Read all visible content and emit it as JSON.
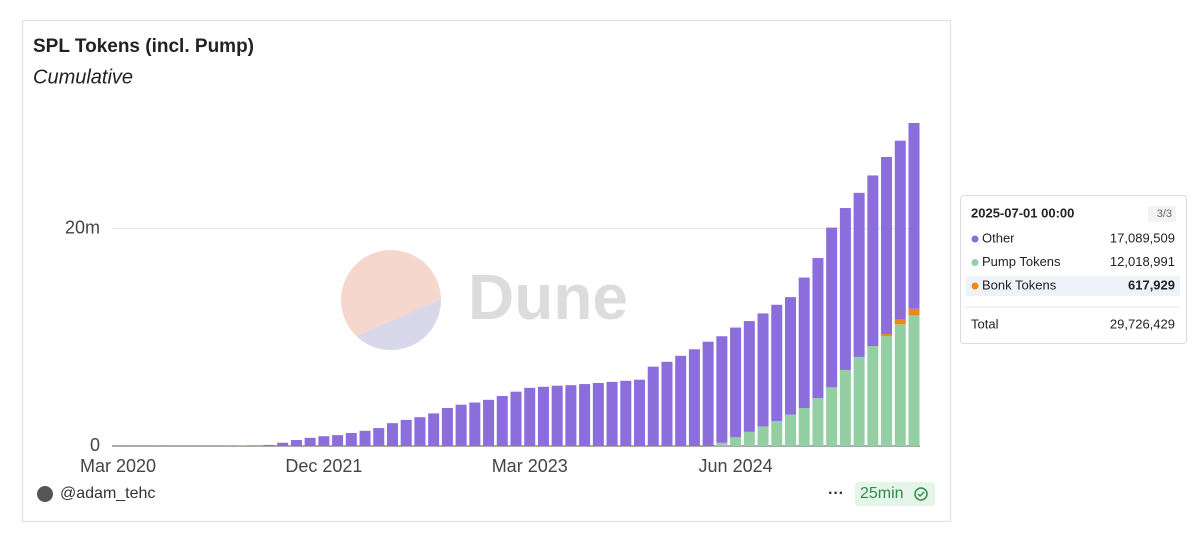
{
  "chart_data": {
    "type": "stacked_bar",
    "title": "SPL Tokens (incl. Pump)",
    "subtitle": "Cumulative",
    "watermark": "Dune",
    "categories": [
      "Mar 2020",
      null,
      null,
      null,
      null,
      null,
      null,
      null,
      null,
      null,
      null,
      null,
      null,
      null,
      null,
      "Dec 2021",
      null,
      null,
      null,
      null,
      null,
      null,
      null,
      null,
      null,
      null,
      null,
      null,
      null,
      null,
      "Mar 2023",
      null,
      null,
      null,
      null,
      null,
      null,
      null,
      null,
      null,
      null,
      null,
      null,
      null,
      null,
      "Jun 2024",
      null,
      null,
      null,
      null,
      null,
      null,
      null,
      null,
      null,
      null,
      null,
      null,
      null
    ],
    "series": [
      {
        "name": "Other",
        "color": "#8b6ddb",
        "values": [
          5000,
          8000,
          10000,
          12000,
          15000,
          18000,
          20000,
          25000,
          30000,
          40000,
          60000,
          100000,
          300000,
          550000,
          750000,
          900000,
          1000000,
          1200000,
          1400000,
          1650000,
          2100000,
          2400000,
          2650000,
          3000000,
          3500000,
          3800000,
          4000000,
          4250000,
          4600000,
          5000000,
          5350000,
          5450000,
          5550000,
          5600000,
          5700000,
          5800000,
          5900000,
          6000000,
          6100000,
          7300000,
          7750000,
          8300000,
          8900000,
          9600000,
          9800000,
          10100000,
          10200000,
          10400000,
          10700000,
          10800000,
          12000000,
          12900000,
          14700000,
          14900000,
          15100000,
          15700000,
          16300000,
          16450000,
          17089509
        ]
      },
      {
        "name": "Pump Tokens",
        "color": "#93cfa3",
        "values": [
          null,
          null,
          null,
          null,
          null,
          null,
          null,
          null,
          null,
          null,
          null,
          null,
          null,
          null,
          null,
          null,
          null,
          null,
          null,
          null,
          null,
          null,
          null,
          null,
          null,
          null,
          null,
          null,
          null,
          null,
          null,
          null,
          null,
          null,
          null,
          null,
          null,
          null,
          null,
          null,
          null,
          null,
          null,
          null,
          300000,
          800000,
          1300000,
          1800000,
          2300000,
          2900000,
          3500000,
          4400000,
          5400000,
          7000000,
          8200000,
          9200000,
          10100000,
          11200000,
          12018991
        ]
      },
      {
        "name": "Bonk Tokens",
        "color": "#e8891c",
        "values": [
          null,
          null,
          null,
          null,
          null,
          null,
          null,
          null,
          null,
          null,
          null,
          null,
          null,
          null,
          null,
          null,
          null,
          null,
          null,
          null,
          null,
          null,
          null,
          null,
          null,
          null,
          null,
          null,
          null,
          null,
          null,
          null,
          null,
          null,
          null,
          null,
          null,
          null,
          null,
          null,
          null,
          null,
          null,
          null,
          null,
          null,
          null,
          null,
          null,
          null,
          null,
          null,
          null,
          null,
          null,
          null,
          200000,
          450000,
          617929
        ]
      }
    ],
    "ylim": [
      0,
      29726429
    ],
    "yticks": [
      0,
      {
        "value": 20000000,
        "label": "20m"
      }
    ],
    "grid": true,
    "tooltip": {
      "date": "2025-07-01 00:00",
      "page": "3/3",
      "values": [
        "17,089,509",
        "12,018,991",
        "617,929"
      ],
      "total_label": "Total",
      "total": "29,726,429"
    },
    "author": "@adam_tehc",
    "more": "···",
    "refresh": "25min"
  }
}
